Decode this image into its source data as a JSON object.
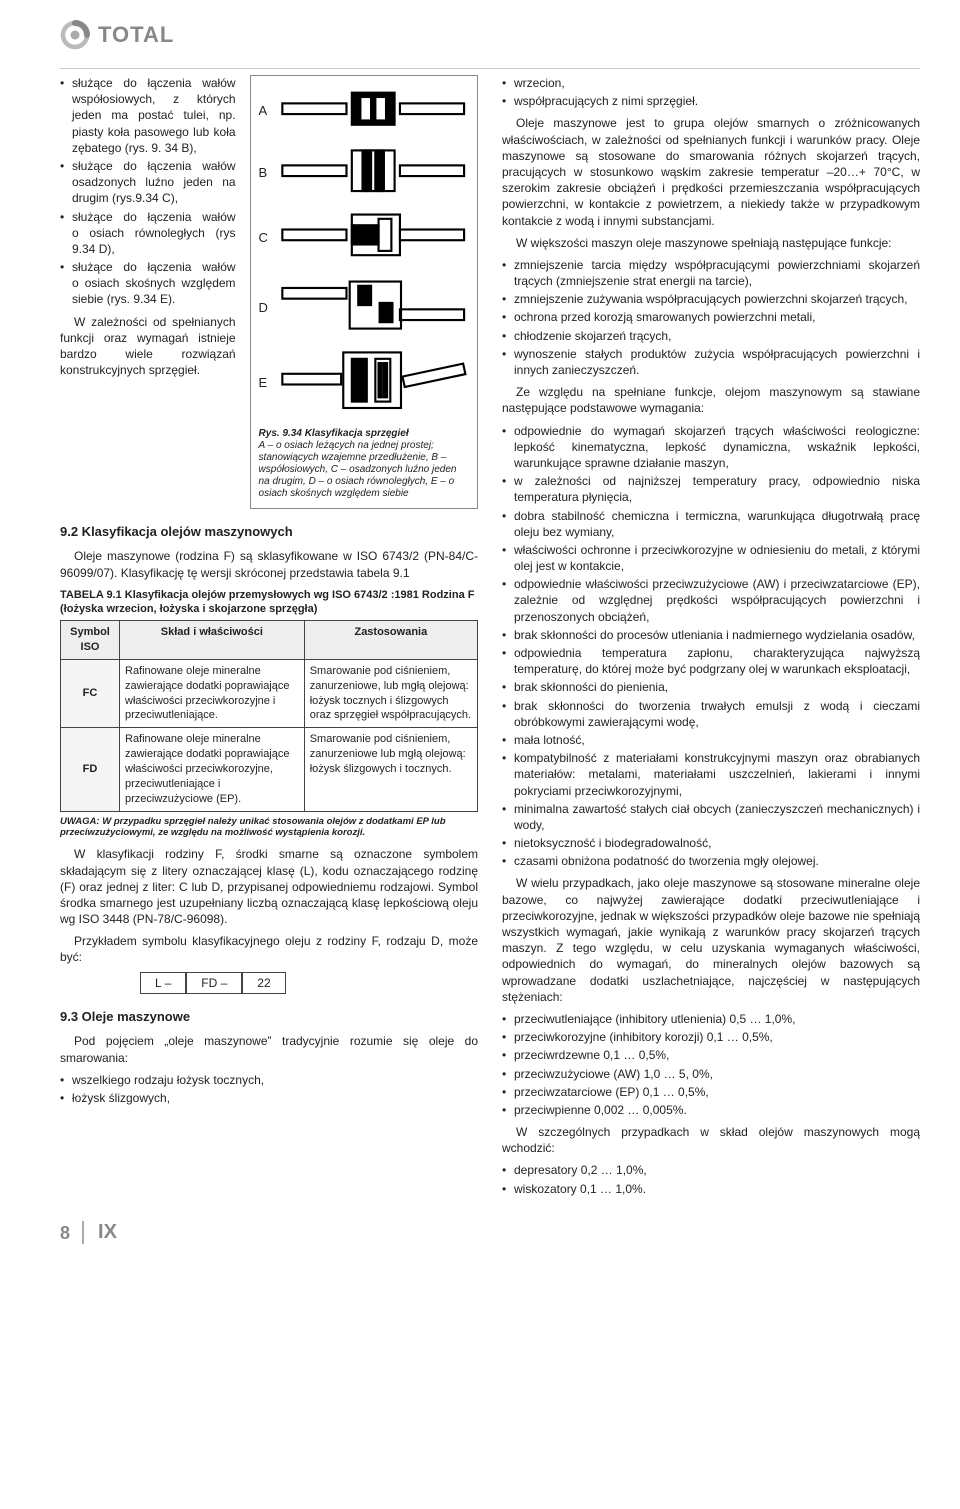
{
  "brand": {
    "name": "Total"
  },
  "page_number": "8",
  "chapter_roman": "IX",
  "left": {
    "intro_bullets": [
      "służące do łączenia wałów współosiowych, z których jeden ma postać tulei, np. piasty koła pasowego lub koła zębatego (rys. 9. 34 B),",
      "służące do łączenia wałów osadzonych luźno jeden na drugim (rys.9.34 C),",
      "służące do łączenia wałów o osiach równoległych (rys 9.34 D),",
      "służące do łączenia wałów o osiach skośnych względem siebie (rys. 9.34 E)."
    ],
    "intro_para": "W zależności od spełnianych funkcji oraz wymagań istnieje bardzo wiele rozwiązań konstrukcyjnych sprzęgieł.",
    "figure": {
      "labels": [
        "A",
        "B",
        "C",
        "D",
        "E"
      ],
      "caption_title": "Rys. 9.34 Klasyfikacja sprzęgieł",
      "caption_body": "A – o osiach leżących na jednej prostej; stanowiących wzajemne przedłużenie, B – współosiowych, C – osadzonych luźno jeden na drugim, D – o osiach równoległych, E – o osiach skośnych względem siebie"
    },
    "sec92": {
      "heading": "9.2 Klasyfikacja olejów maszynowych",
      "para": "Oleje maszynowe (rodzina F) są sklasyfikowane w ISO 6743/2 (PN-84/C-96099/07). Klasyfikację tę wersji skróconej przedstawia tabela 9.1",
      "table_title": "TABELA 9.1 Klasyfikacja olejów przemysłowych wg ISO 6743/2 :1981 Rodzina F (łożyska wrzecion, łożyska i skojarzone sprzęgła)",
      "columns": [
        "Symbol ISO",
        "Skład i właściwości",
        "Zastosowania"
      ],
      "rows": [
        [
          "FC",
          "Rafinowane oleje mineralne zawierające dodatki poprawiające właściwości przeciwkorozyjne i przeciwutleniające.",
          "Smarowanie pod ciśnieniem, zanurzeniowe, lub mgłą olejową: łożysk tocznych i ślizgowych oraz sprzęgieł współpracujących."
        ],
        [
          "FD",
          "Rafinowane oleje mineralne zawierające dodatki poprawiające właściwości przeciwkorozyjne, przeciwutleniające i przeciwzużyciowe (EP).",
          "Smarowanie pod ciśnieniem, zanurzeniowe lub mgłą olejową: łożysk ślizgowych i tocznych."
        ]
      ],
      "note": "UWAGA: W przypadku sprzęgieł należy unikać stosowania olejów z dodatkami EP lub przeciwzużyciowymi, ze względu na możliwość wystąpienia korozji.",
      "post1": "W klasyfikacji rodziny F, środki smarne są oznaczone symbolem składającym się z litery oznaczającej klasę (L), kodu oznaczającego rodzinę (F) oraz jednej z liter: C lub D, przypisanej odpowiedniemu rodzajowi. Symbol środka smarnego jest uzupełniany liczbą oznaczającą klasę lepkościową oleju wg ISO 3448 (PN-78/C-96098).",
      "post2": "Przykładem symbolu klasyfikacyjnego oleju z rodziny F, rodzaju D, może być:",
      "code": [
        "L –",
        "FD –",
        "22"
      ]
    },
    "sec93": {
      "heading": "9.3 Oleje maszynowe",
      "para": "Pod pojęciem „oleje maszynowe” tradycyjnie rozumie się oleje do smarowania:",
      "bullets": [
        "wszelkiego rodzaju łożysk tocznych,",
        "łożysk ślizgowych,"
      ]
    }
  },
  "right": {
    "lead_bullets": [
      "wrzecion,",
      "współpracujących z nimi sprzęgieł."
    ],
    "para1": "Oleje maszynowe jest to grupa olejów smarnych o zróżnicowanych właściwościach, w zależności od spełnianych funkcji i warunków pracy. Oleje maszynowe są stosowane do smarowania różnych skojarzeń trących, pracujących w stosunkowo wąskim zakresie temperatur –20…+ 70°C, w szerokim zakresie obciążeń i prędkości przemieszczania współpracujących powierzchni, w kontakcie z powietrzem, a niekiedy także w przypadkowym kontakcie z wodą i innymi substancjami.",
    "para2": "W większości maszyn oleje maszynowe spełniają następujące funkcje:",
    "func_bullets": [
      "zmniejszenie tarcia między współpracującymi powierzchniami skojarzeń trących (zmniejszenie strat energii na tarcie),",
      "zmniejszenie zużywania współpracujących powierzchni skojarzeń trących,",
      "ochrona przed korozją smarowanych powierzchni metali,",
      "chłodzenie skojarzeń trących,",
      "wynoszenie stałych produktów zużycia współpracujących powierzchni i innych zanieczyszczeń."
    ],
    "para3": "Ze względu na spełniane funkcje, olejom maszynowym są stawiane następujące podstawowe wymagania:",
    "req_bullets": [
      "odpowiednie do wymagań skojarzeń trących właściwości reologiczne: lepkość kinematyczna, lepkość dynamiczna, wskaźnik lepkości, warunkujące sprawne działanie maszyn,",
      "w zależności od najniższej temperatury pracy, odpowiednio niska temperatura płynięcia,",
      "dobra stabilność chemiczna i termiczna, warunkująca długotrwałą pracę oleju bez wymiany,",
      "właściwości ochronne i przeciwkorozyjne w odniesieniu do metali, z którymi olej jest w kontakcie,",
      "odpowiednie właściwości przeciwzużyciowe (AW) i przeciwzatarciowe (EP), zależnie od względnej prędkości współpracujących powierzchni i przenoszonych obciążeń,",
      "brak skłonności do procesów utleniania i nadmiernego wydzielania osadów,",
      "odpowiednia temperatura zapłonu, charakteryzująca najwyższą temperaturę, do której może być podgrzany olej w warunkach eksploatacji,",
      "brak skłonności do pienienia,",
      "brak skłonności do tworzenia trwałych emulsji z wodą i cieczami obróbkowymi zawierającymi wodę,",
      "mała lotność,",
      "kompatybilność z materiałami konstrukcyjnymi maszyn oraz obrabianych materiałów: metalami, materiałami uszczelnień, lakierami i innymi pokryciami przeciwkorozyjnymi,",
      "minimalna zawartość stałych ciał obcych (zanieczyszczeń mechanicznych) i wody,",
      "nietoksyczność i biodegradowalność,",
      "czasami obniżona podatność do tworzenia mgły olejowej."
    ],
    "para4": "W wielu przypadkach, jako oleje maszynowe są stosowane mineralne oleje bazowe, co najwyżej zawierające dodatki przeciwutleniające i przeciwkorozyjne, jednak w większości przypadków oleje bazowe nie spełniają wszystkich wymagań, jakie wynikają z warunków pracy skojarzeń trących maszyn. Z tego względu, w celu uzyskania wymaganych właściwości, odpowiednich do wymagań, do mineralnych olejów bazowych są wprowadzane dodatki uszlachetniające, najczęściej w następujących stężeniach:",
    "conc_bullets": [
      "przeciwutleniające (inhibitory utlenienia) 0,5 … 1,0%,",
      "przeciwkorozyjne (inhibitory korozji) 0,1 … 0,5%,",
      "przeciwrdzewne 0,1 … 0,5%,",
      "przeciwzużyciowe (AW) 1,0 … 5, 0%,",
      "przeciwzatarciowe (EP) 0,1 … 0,5%,",
      "przeciwpienne 0,002 … 0,005%."
    ],
    "para5": "W szczególnych przypadkach w skład olejów maszynowych mogą wchodzić:",
    "extra_bullets": [
      "depresatory 0,2 … 1,0%,",
      "wiskozatory 0,1 … 1,0%."
    ]
  }
}
